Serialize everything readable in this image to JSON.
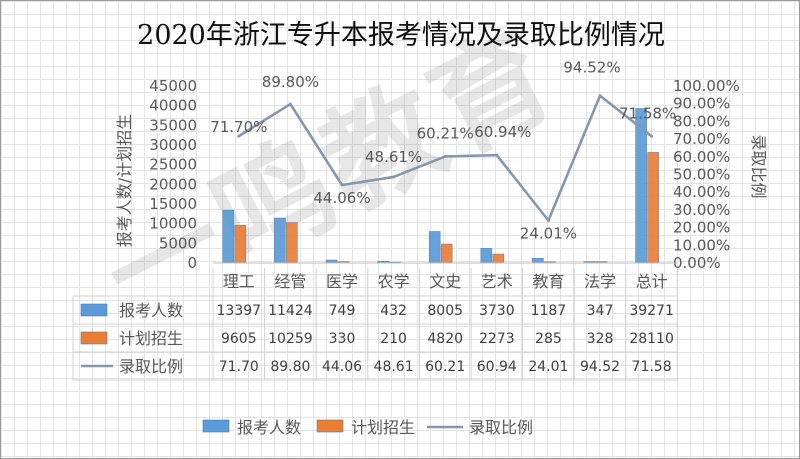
{
  "title": "2020年浙江专升本报考情况及录取比例情况",
  "watermark": "一鸣教育",
  "chart_data": {
    "type": "bar",
    "categories": [
      "理工",
      "经管",
      "医学",
      "农学",
      "文史",
      "艺术",
      "教育",
      "法学",
      "总计"
    ],
    "series": [
      {
        "name": "报考人数",
        "kind": "bar",
        "axis": "left",
        "color": "#5b9bd5",
        "values": [
          13397,
          11424,
          749,
          432,
          8005,
          3730,
          1187,
          347,
          39271
        ]
      },
      {
        "name": "计划招生",
        "kind": "bar",
        "axis": "left",
        "color": "#ed7d31",
        "values": [
          9605,
          10259,
          330,
          210,
          4820,
          2273,
          285,
          328,
          28110
        ]
      },
      {
        "name": "录取比例",
        "kind": "line",
        "axis": "right",
        "color": "#8497b0",
        "values": [
          71.7,
          89.8,
          44.06,
          48.61,
          60.21,
          60.94,
          24.01,
          94.52,
          71.58
        ]
      }
    ],
    "point_labels": [
      "71.70%",
      "89.80%",
      "44.06%",
      "48.61%",
      "60.21%",
      "60.94%",
      "24.01%",
      "94.52%",
      "71.58%"
    ],
    "table": {
      "rows": [
        {
          "name": "报考人数",
          "cells": [
            "13397",
            "11424",
            "749",
            "432",
            "8005",
            "3730",
            "1187",
            "347",
            "39271"
          ]
        },
        {
          "name": "计划招生",
          "cells": [
            "9605",
            "10259",
            "330",
            "210",
            "4820",
            "2273",
            "285",
            "328",
            "28110"
          ]
        },
        {
          "name": "录取比例",
          "cells": [
            "71.70",
            "89.80",
            "44.06",
            "48.61",
            "60.21",
            "60.94",
            "24.01",
            "94.52",
            "71.58"
          ]
        }
      ]
    },
    "y_left": {
      "label": "报考人数/计划招生",
      "ticks": [
        "0",
        "5000",
        "10000",
        "15000",
        "20000",
        "25000",
        "30000",
        "35000",
        "40000",
        "45000"
      ],
      "ylim": [
        0,
        45000
      ]
    },
    "y_right": {
      "label": "录取比例",
      "ticks": [
        "0.00%",
        "10.00%",
        "20.00%",
        "30.00%",
        "40.00%",
        "50.00%",
        "60.00%",
        "70.00%",
        "80.00%",
        "90.00%",
        "100.00%"
      ],
      "ylim": [
        0,
        100
      ]
    },
    "legend": {
      "position": "bottom",
      "items": [
        "报考人数",
        "计划招生",
        "录取比例"
      ]
    },
    "grid": false
  }
}
